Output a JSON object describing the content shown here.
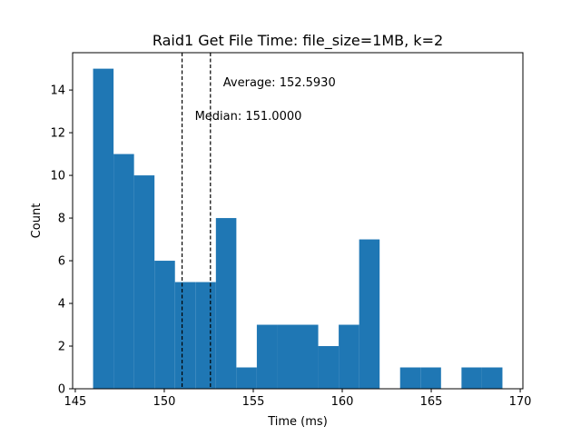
{
  "chart_data": {
    "type": "bar",
    "title": "Raid1 Get File Time: file_size=1MB, k=2",
    "xlabel": "Time (ms)",
    "ylabel": "Count",
    "xlim": [
      144.85,
      170.15
    ],
    "ylim": [
      0,
      15.75
    ],
    "xticks": [
      145,
      150,
      155,
      160,
      165,
      170
    ],
    "yticks": [
      0,
      2,
      4,
      6,
      8,
      10,
      12,
      14
    ],
    "bar_color": "#1f77b4",
    "bins": [
      {
        "x0": 146.0,
        "x1": 147.15,
        "count": 15
      },
      {
        "x0": 147.15,
        "x1": 148.3,
        "count": 11
      },
      {
        "x0": 148.3,
        "x1": 149.45,
        "count": 10
      },
      {
        "x0": 149.45,
        "x1": 150.6,
        "count": 6
      },
      {
        "x0": 150.6,
        "x1": 151.75,
        "count": 5
      },
      {
        "x0": 151.75,
        "x1": 152.9,
        "count": 5
      },
      {
        "x0": 152.9,
        "x1": 154.05,
        "count": 8
      },
      {
        "x0": 154.05,
        "x1": 155.2,
        "count": 1
      },
      {
        "x0": 155.2,
        "x1": 156.35,
        "count": 3
      },
      {
        "x0": 156.35,
        "x1": 157.5,
        "count": 3
      },
      {
        "x0": 157.5,
        "x1": 158.65,
        "count": 3
      },
      {
        "x0": 158.65,
        "x1": 159.8,
        "count": 2
      },
      {
        "x0": 159.8,
        "x1": 160.95,
        "count": 3
      },
      {
        "x0": 160.95,
        "x1": 162.1,
        "count": 7
      },
      {
        "x0": 162.1,
        "x1": 163.25,
        "count": 0
      },
      {
        "x0": 163.25,
        "x1": 164.4,
        "count": 1
      },
      {
        "x0": 164.4,
        "x1": 165.55,
        "count": 1
      },
      {
        "x0": 165.55,
        "x1": 166.7,
        "count": 0
      },
      {
        "x0": 166.7,
        "x1": 167.85,
        "count": 1
      },
      {
        "x0": 167.85,
        "x1": 169.0,
        "count": 1
      }
    ],
    "vlines": [
      {
        "name": "average",
        "x": 152.593,
        "label": "Average: 152.5930",
        "style": "dashed"
      },
      {
        "name": "median",
        "x": 151.0,
        "label": "Median: 151.0000",
        "style": "dashed"
      }
    ],
    "grid": false
  }
}
